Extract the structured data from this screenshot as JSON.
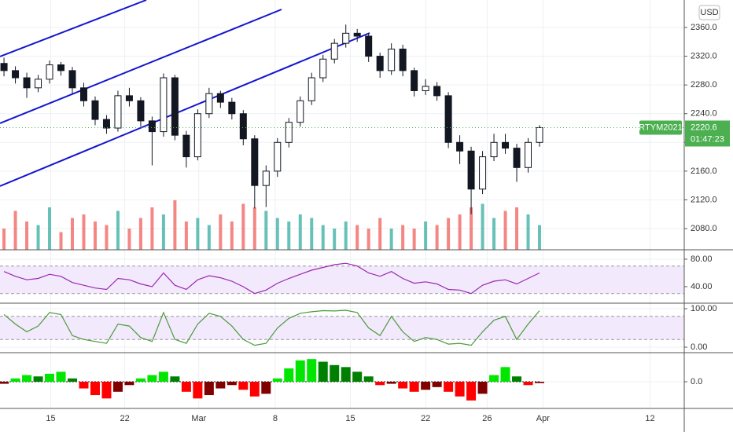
{
  "chart_data": [
    {
      "type": "candlestick",
      "symbol": "RTYM2021",
      "currency": "USD",
      "countdown": "01:47:23",
      "xlim": [
        -0.35,
        59.7
      ],
      "xticks": [
        {
          "value": 4.1,
          "label": "15"
        },
        {
          "value": 10.6,
          "label": "22"
        },
        {
          "value": 17.1,
          "label": "Mar"
        },
        {
          "value": 23.8,
          "label": "8"
        },
        {
          "value": 30.4,
          "label": "15"
        },
        {
          "value": 37.0,
          "label": "22"
        },
        {
          "value": 42.4,
          "label": "26"
        },
        {
          "value": 47.3,
          "label": "Apr"
        },
        {
          "value": 56.7,
          "label": "12"
        }
      ],
      "ylim": [
        2050.5,
        2398.3
      ],
      "yticks": [
        {
          "value": 2080,
          "label": "2080.0"
        },
        {
          "value": 2120,
          "label": "2120.0"
        },
        {
          "value": 2160,
          "label": "2160.0"
        },
        {
          "value": 2200,
          "label": "2200.0"
        },
        {
          "value": 2240,
          "label": "2240.0"
        },
        {
          "value": 2280,
          "label": "2280.0"
        },
        {
          "value": 2320,
          "label": "2320.0"
        },
        {
          "value": 2360,
          "label": "2360.0"
        }
      ],
      "open": [
        2310,
        2300,
        2290,
        2276,
        2288,
        2308,
        2300,
        2276,
        2258,
        2232,
        2220,
        2265,
        2258,
        2230,
        2215,
        2290,
        2210,
        2180,
        2240,
        2268,
        2256,
        2240,
        2205,
        2140,
        2160,
        2200,
        2228,
        2258,
        2290,
        2316,
        2338,
        2352,
        2348,
        2320,
        2300,
        2330,
        2300,
        2272,
        2278,
        2265,
        2200,
        2188,
        2135,
        2180,
        2200,
        2192,
        2165,
        2200
      ],
      "high": [
        2318,
        2306,
        2297,
        2294,
        2314,
        2312,
        2305,
        2283,
        2264,
        2238,
        2272,
        2276,
        2263,
        2236,
        2296,
        2294,
        2216,
        2246,
        2276,
        2272,
        2262,
        2245,
        2210,
        2168,
        2206,
        2234,
        2264,
        2297,
        2322,
        2344,
        2364,
        2358,
        2352,
        2325,
        2338,
        2336,
        2304,
        2288,
        2284,
        2270,
        2210,
        2194,
        2188,
        2212,
        2212,
        2198,
        2206,
        2224
      ],
      "low": [
        2292,
        2282,
        2262,
        2270,
        2282,
        2293,
        2268,
        2250,
        2224,
        2212,
        2215,
        2250,
        2222,
        2168,
        2208,
        2203,
        2165,
        2175,
        2234,
        2248,
        2232,
        2196,
        2108,
        2110,
        2152,
        2193,
        2222,
        2252,
        2284,
        2310,
        2332,
        2340,
        2312,
        2290,
        2294,
        2292,
        2264,
        2266,
        2258,
        2192,
        2170,
        2100,
        2128,
        2174,
        2184,
        2145,
        2158,
        2194
      ],
      "close": [
        2300,
        2290,
        2276,
        2288,
        2308,
        2300,
        2276,
        2258,
        2232,
        2220,
        2265,
        2258,
        2230,
        2215,
        2290,
        2210,
        2180,
        2240,
        2268,
        2256,
        2240,
        2205,
        2140,
        2160,
        2200,
        2228,
        2258,
        2290,
        2316,
        2338,
        2352,
        2348,
        2320,
        2300,
        2330,
        2300,
        2272,
        2278,
        2265,
        2200,
        2188,
        2135,
        2180,
        2200,
        2192,
        2165,
        2200,
        2220.6
      ],
      "volume": [
        30,
        55,
        40,
        35,
        60,
        25,
        45,
        50,
        40,
        35,
        55,
        30,
        45,
        60,
        50,
        70,
        40,
        45,
        35,
        50,
        40,
        65,
        60,
        55,
        45,
        40,
        50,
        45,
        35,
        30,
        40,
        35,
        30,
        45,
        30,
        35,
        30,
        40,
        35,
        45,
        50,
        60,
        65,
        45,
        55,
        60,
        50,
        35
      ],
      "up_color": "#ffffff",
      "down_color": "#131722",
      "volume_up_color": "#26a69a",
      "volume_down_color": "#ef5350",
      "last_color": "#4caf50",
      "grid": true
    },
    {
      "type": "line",
      "ylim": [
        17.1,
        91.4
      ],
      "yticks": [
        {
          "value": 40,
          "label": "40.00"
        },
        {
          "value": 80,
          "label": "80.00"
        }
      ],
      "band": [
        30,
        70
      ],
      "color": "#9c27b0",
      "values": [
        62,
        55,
        50,
        52,
        58,
        55,
        46,
        42,
        38,
        36,
        52,
        50,
        44,
        40,
        60,
        42,
        36,
        50,
        56,
        53,
        48,
        40,
        30,
        35,
        45,
        52,
        58,
        64,
        68,
        72,
        74,
        70,
        60,
        55,
        62,
        52,
        45,
        47,
        44,
        36,
        35,
        30,
        42,
        48,
        50,
        44,
        52,
        60
      ]
    },
    {
      "type": "line",
      "ylim": [
        -12.2,
        110.2
      ],
      "yticks": [
        {
          "value": 0,
          "label": "0.00"
        },
        {
          "value": 100,
          "label": "100.00"
        }
      ],
      "band": [
        20,
        80
      ],
      "color": "#4a9b3a",
      "values": [
        85,
        60,
        40,
        55,
        90,
        85,
        30,
        20,
        15,
        10,
        60,
        55,
        25,
        15,
        90,
        20,
        10,
        60,
        88,
        80,
        55,
        20,
        5,
        10,
        50,
        75,
        88,
        92,
        95,
        94,
        96,
        90,
        50,
        30,
        80,
        40,
        15,
        25,
        20,
        8,
        10,
        5,
        40,
        70,
        80,
        20,
        60,
        95
      ]
    },
    {
      "type": "histogram",
      "ylim": [
        -37.6,
        42.4
      ],
      "yticks": [
        {
          "value": 0,
          "label": "0.0"
        }
      ],
      "colors": {
        "up_rising": "#00e600",
        "up_falling": "#008000",
        "down_falling": "#ff0000",
        "down_rising": "#800000"
      },
      "values": [
        -3,
        5,
        10,
        8,
        12,
        15,
        5,
        -10,
        -20,
        -25,
        -15,
        -5,
        5,
        10,
        15,
        8,
        -15,
        -25,
        -20,
        -10,
        -5,
        -12,
        -22,
        -18,
        5,
        20,
        32,
        34,
        30,
        25,
        22,
        15,
        8,
        -5,
        -3,
        -10,
        -15,
        -12,
        -8,
        -15,
        -22,
        -28,
        -18,
        10,
        22,
        8,
        -5,
        -2
      ]
    }
  ]
}
